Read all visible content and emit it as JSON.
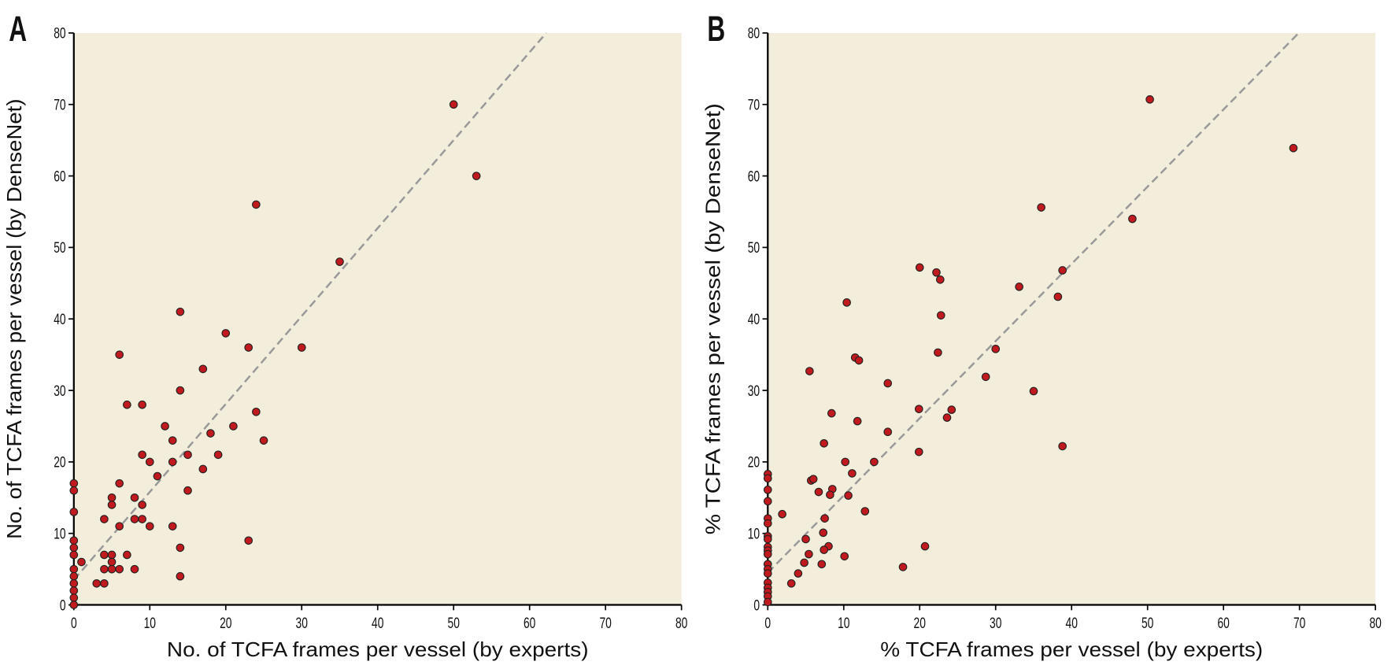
{
  "chart_data": [
    {
      "type": "scatter",
      "panel_label": "A",
      "xlabel": "No. of TCFA frames per vessel (by experts)",
      "ylabel": "No. of TCFA frames per vessel (by DenseNet)",
      "xlim": [
        0,
        80
      ],
      "ylim": [
        0,
        80
      ],
      "xticks": [
        0,
        10,
        20,
        30,
        40,
        50,
        60,
        70,
        80
      ],
      "yticks": [
        0,
        10,
        20,
        30,
        40,
        50,
        60,
        70,
        80
      ],
      "background_color": "#f2eedb",
      "point_color": "#c0191e",
      "line_color": "#999999",
      "fit_line": {
        "style": "dashed",
        "intercept": 3.5,
        "slope": 1.23
      },
      "points": [
        [
          50,
          70
        ],
        [
          53,
          60
        ],
        [
          24,
          56
        ],
        [
          35,
          48
        ],
        [
          14,
          41
        ],
        [
          20,
          38
        ],
        [
          23,
          36
        ],
        [
          30,
          36
        ],
        [
          6,
          35
        ],
        [
          17,
          33
        ],
        [
          14,
          30
        ],
        [
          7,
          28
        ],
        [
          9,
          28
        ],
        [
          24,
          27
        ],
        [
          12,
          25
        ],
        [
          21,
          25
        ],
        [
          18,
          24
        ],
        [
          13,
          23
        ],
        [
          25,
          23
        ],
        [
          9,
          21
        ],
        [
          15,
          21
        ],
        [
          19,
          21
        ],
        [
          10,
          20
        ],
        [
          13,
          20
        ],
        [
          17,
          19
        ],
        [
          11,
          18
        ],
        [
          0,
          17
        ],
        [
          6,
          17
        ],
        [
          0,
          16
        ],
        [
          15,
          16
        ],
        [
          5,
          15
        ],
        [
          8,
          15
        ],
        [
          5,
          14
        ],
        [
          9,
          14
        ],
        [
          0,
          13
        ],
        [
          4,
          12
        ],
        [
          8,
          12
        ],
        [
          9,
          12
        ],
        [
          6,
          11
        ],
        [
          10,
          11
        ],
        [
          13,
          11
        ],
        [
          0,
          9
        ],
        [
          23,
          9
        ],
        [
          0,
          8
        ],
        [
          14,
          8
        ],
        [
          0,
          7
        ],
        [
          4,
          7
        ],
        [
          5,
          7
        ],
        [
          7,
          7
        ],
        [
          1,
          6
        ],
        [
          5,
          6
        ],
        [
          0,
          5
        ],
        [
          4,
          5
        ],
        [
          5,
          5
        ],
        [
          6,
          5
        ],
        [
          8,
          5
        ],
        [
          0,
          4
        ],
        [
          14,
          4
        ],
        [
          0,
          3
        ],
        [
          3,
          3
        ],
        [
          4,
          3
        ],
        [
          0,
          2
        ],
        [
          0,
          1
        ],
        [
          0,
          0
        ]
      ]
    },
    {
      "type": "scatter",
      "panel_label": "B",
      "xlabel": "% TCFA frames per vessel (by experts)",
      "ylabel": "% TCFA frames per vessel (by DenseNet)",
      "xlim": [
        0,
        80
      ],
      "ylim": [
        0,
        80
      ],
      "xticks": [
        0,
        10,
        20,
        30,
        40,
        50,
        60,
        70,
        80
      ],
      "yticks": [
        0,
        10,
        20,
        30,
        40,
        50,
        60,
        70,
        80
      ],
      "background_color": "#f2eedb",
      "point_color": "#c0191e",
      "line_color": "#999999",
      "fit_line": {
        "style": "dashed",
        "intercept": 4.5,
        "slope": 1.08
      },
      "points": [
        [
          50.3,
          70.7
        ],
        [
          69.2,
          63.9
        ],
        [
          36,
          55.6
        ],
        [
          48,
          54
        ],
        [
          20,
          47.2
        ],
        [
          22.2,
          46.5
        ],
        [
          22.7,
          45.5
        ],
        [
          38.8,
          46.8
        ],
        [
          33.1,
          44.5
        ],
        [
          38.2,
          43.1
        ],
        [
          10.4,
          42.3
        ],
        [
          22.8,
          40.5
        ],
        [
          11.5,
          34.6
        ],
        [
          12,
          34.2
        ],
        [
          22.4,
          35.3
        ],
        [
          30,
          35.8
        ],
        [
          5.5,
          32.7
        ],
        [
          15.8,
          31
        ],
        [
          28.7,
          31.9
        ],
        [
          35,
          29.9
        ],
        [
          19.9,
          27.4
        ],
        [
          24.2,
          27.3
        ],
        [
          8.4,
          26.8
        ],
        [
          23.6,
          26.2
        ],
        [
          11.8,
          25.7
        ],
        [
          15.8,
          24.2
        ],
        [
          7.4,
          22.6
        ],
        [
          38.8,
          22.2
        ],
        [
          19.9,
          21.4
        ],
        [
          10.2,
          20
        ],
        [
          14,
          20
        ],
        [
          11.1,
          18.4
        ],
        [
          5.7,
          17.4
        ],
        [
          6,
          17.6
        ],
        [
          8.5,
          16.2
        ],
        [
          6.7,
          15.8
        ],
        [
          8.2,
          15.4
        ],
        [
          10.6,
          15.3
        ],
        [
          1.9,
          12.7
        ],
        [
          12.8,
          13.1
        ],
        [
          7.5,
          12.1
        ],
        [
          7.3,
          10.1
        ],
        [
          5,
          9.2
        ],
        [
          20.7,
          8.2
        ],
        [
          8,
          8.2
        ],
        [
          7.4,
          7.7
        ],
        [
          5.4,
          7.1
        ],
        [
          10.1,
          6.8
        ],
        [
          4.8,
          5.9
        ],
        [
          7.1,
          5.7
        ],
        [
          17.8,
          5.3
        ],
        [
          4,
          4.4
        ],
        [
          3.1,
          3
        ],
        [
          0,
          18.3
        ],
        [
          0,
          17.7
        ],
        [
          0,
          16.1
        ],
        [
          0,
          14.5
        ],
        [
          0,
          12.1
        ],
        [
          0,
          11.4
        ],
        [
          0,
          9.6
        ],
        [
          0,
          9.2
        ],
        [
          0,
          8.1
        ],
        [
          0,
          7.6
        ],
        [
          0,
          7.1
        ],
        [
          0,
          5.7
        ],
        [
          0,
          5
        ],
        [
          0,
          4.4
        ],
        [
          0,
          3.1
        ],
        [
          0,
          2.4
        ],
        [
          0,
          1.8
        ],
        [
          0,
          1.2
        ],
        [
          0,
          0.4
        ]
      ]
    }
  ]
}
